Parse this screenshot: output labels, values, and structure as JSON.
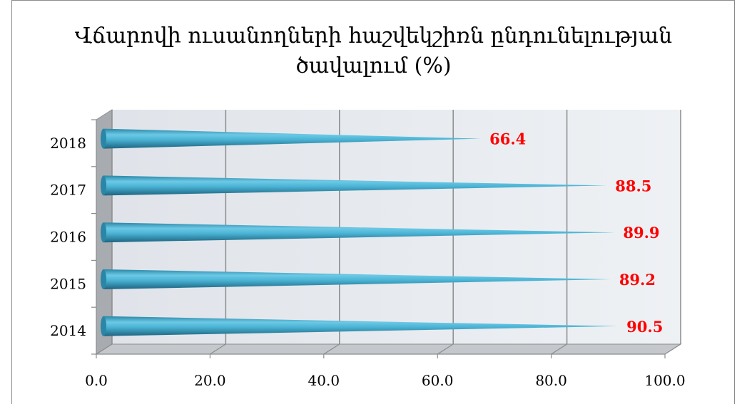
{
  "chart_data": {
    "type": "bar",
    "orientation": "horizontal",
    "title_line1": "Վճարովի ուսանողների հաշվեկշիռն ընդունելության",
    "title_line2": "ծավալում (%)",
    "categories": [
      "2014",
      "2015",
      "2016",
      "2017",
      "2018"
    ],
    "values": [
      90.5,
      89.2,
      89.9,
      88.5,
      66.4
    ],
    "value_labels": [
      "90.5",
      "89.2",
      "89.9",
      "88.5",
      "66.4"
    ],
    "xlim": [
      0,
      100
    ],
    "x_ticks": [
      "0.0",
      "20.0",
      "40.0",
      "60.0",
      "80.0",
      "100.0"
    ],
    "grid": true,
    "bar_style": "3d-cone",
    "colors": {
      "bar": "#4bb3d4",
      "bar_dark": "#1f6f8a",
      "label": "#ff0000",
      "wall": "#e6eaee",
      "grid": "#8c8c8c"
    }
  }
}
